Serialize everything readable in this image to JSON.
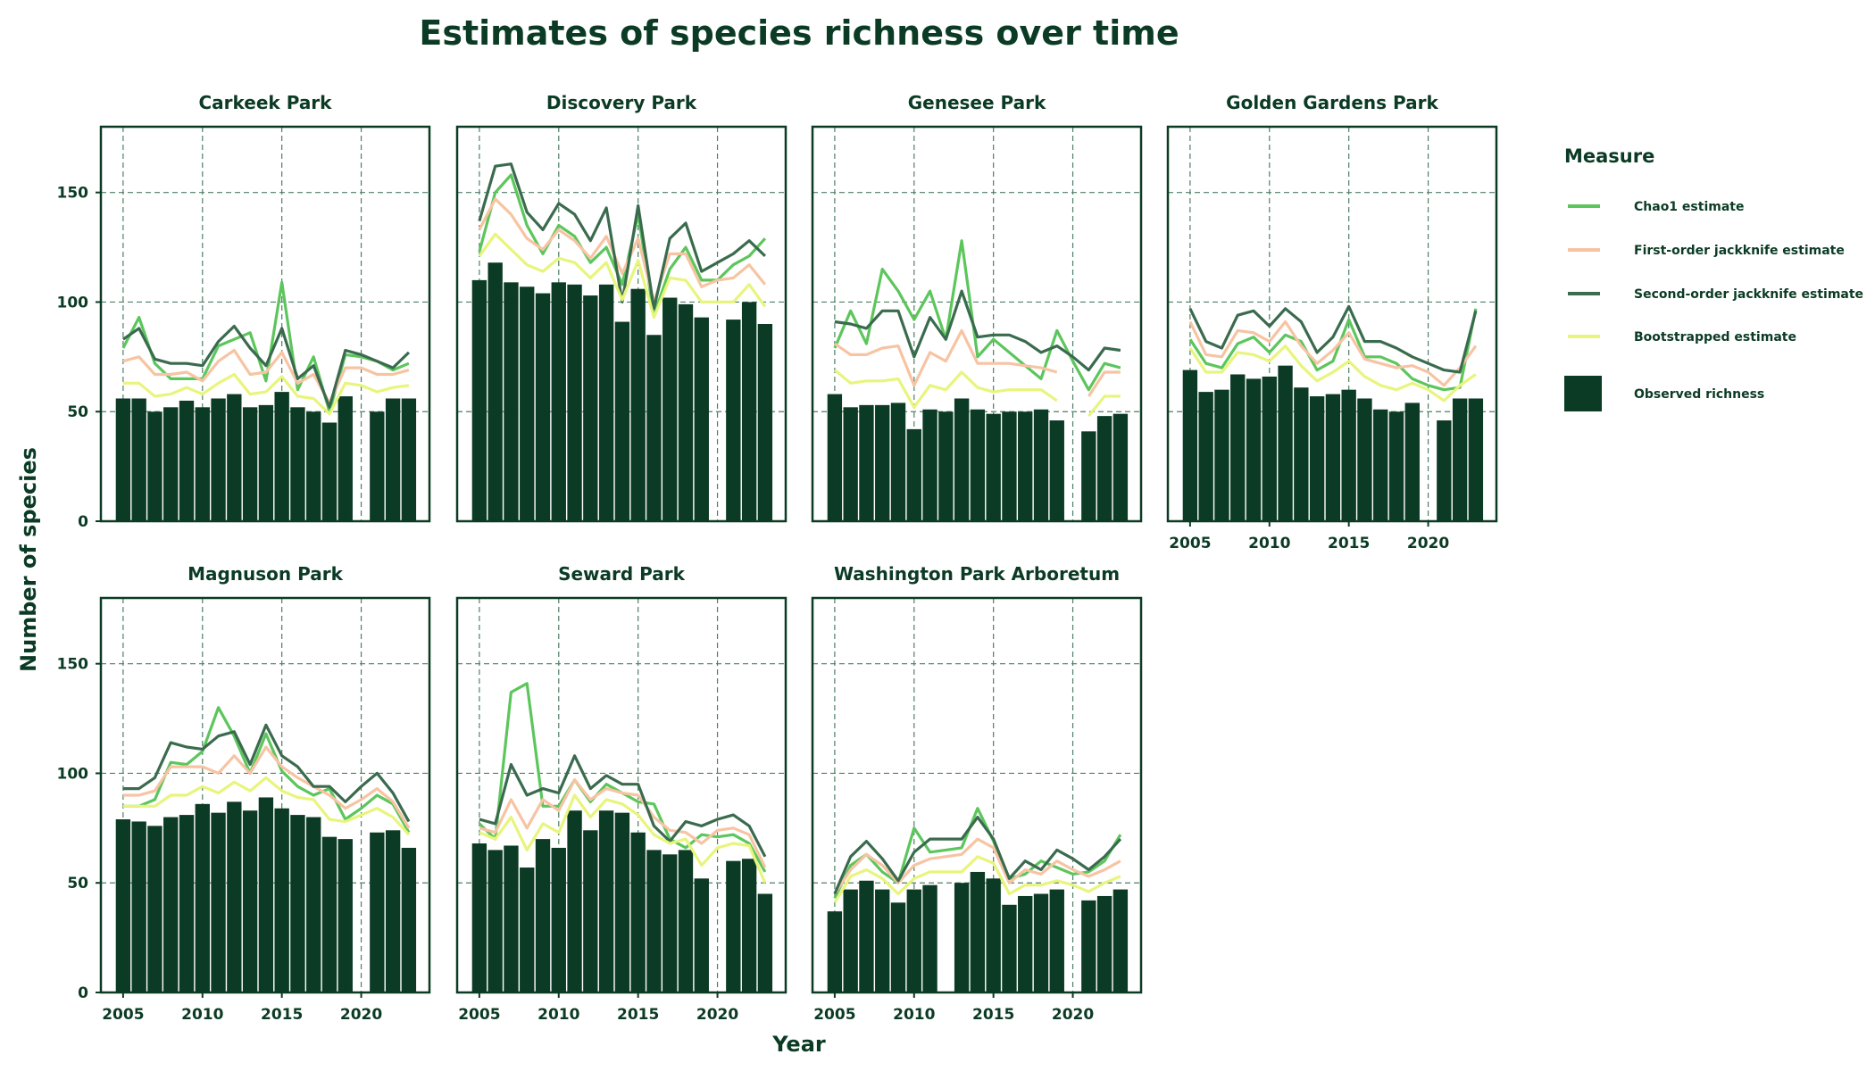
{
  "chart_data": {
    "type": "bar",
    "title": "Estimates of species richness over time",
    "xlabel": "Year",
    "ylabel": "Number of species",
    "ylim": [
      0,
      180
    ],
    "yticks": [
      0,
      50,
      100,
      150
    ],
    "xticks": [
      2005,
      2010,
      2015,
      2020
    ],
    "grid": true,
    "legend": {
      "title": "Measure",
      "position": "right",
      "entries": [
        {
          "name": "Chao1 estimate",
          "color": "#5cc65c",
          "kind": "line"
        },
        {
          "name": "First-order jackknife estimate",
          "color": "#f7c4a3",
          "kind": "line"
        },
        {
          "name": "Second-order jackknife estimate",
          "color": "#3a6b4e",
          "kind": "line"
        },
        {
          "name": "Bootstrapped estimate",
          "color": "#e8f57c",
          "kind": "line"
        },
        {
          "name": "Observed richness",
          "color": "#0b3b24",
          "kind": "bar"
        }
      ]
    },
    "years": [
      2005,
      2006,
      2007,
      2008,
      2009,
      2010,
      2011,
      2012,
      2013,
      2014,
      2015,
      2016,
      2017,
      2018,
      2019,
      2020,
      2021,
      2022,
      2023
    ],
    "panels": [
      {
        "name": "Carkeek Park",
        "observed": [
          56,
          56,
          50,
          52,
          55,
          52,
          56,
          58,
          52,
          53,
          59,
          52,
          50,
          45,
          57,
          null,
          50,
          56,
          56
        ],
        "chao1": [
          79,
          93,
          72,
          65,
          65,
          65,
          80,
          83,
          86,
          64,
          109,
          60,
          75,
          50,
          76,
          75,
          73,
          69,
          72
        ],
        "jack1": [
          73,
          75,
          67,
          67,
          68,
          64,
          73,
          78,
          67,
          68,
          77,
          63,
          67,
          54,
          70,
          70,
          67,
          67,
          69
        ],
        "jack2": [
          83,
          88,
          74,
          72,
          72,
          71,
          82,
          89,
          79,
          71,
          88,
          65,
          71,
          52,
          78,
          76,
          73,
          70,
          77
        ],
        "boot": [
          63,
          63,
          57,
          58,
          61,
          58,
          63,
          67,
          58,
          59,
          66,
          57,
          56,
          49,
          63,
          62,
          59,
          61,
          62
        ]
      },
      {
        "name": "Discovery Park",
        "observed": [
          110,
          118,
          109,
          107,
          104,
          109,
          108,
          103,
          108,
          91,
          106,
          85,
          102,
          99,
          93,
          null,
          92,
          100,
          90
        ],
        "chao1": [
          123,
          150,
          158,
          135,
          122,
          135,
          130,
          118,
          125,
          108,
          140,
          94,
          115,
          125,
          110,
          110,
          117,
          121,
          129
        ],
        "jack1": [
          133,
          147,
          140,
          129,
          124,
          133,
          128,
          120,
          130,
          113,
          129,
          100,
          122,
          122,
          107,
          110,
          111,
          117,
          108
        ],
        "jack2": [
          137,
          162,
          163,
          141,
          133,
          145,
          140,
          128,
          143,
          100,
          144,
          97,
          129,
          136,
          114,
          118,
          122,
          128,
          121
        ],
        "boot": [
          121,
          131,
          124,
          117,
          114,
          120,
          118,
          111,
          118,
          101,
          119,
          93,
          111,
          110,
          100,
          100,
          100,
          108,
          98
        ]
      },
      {
        "name": "Genesee Park",
        "observed": [
          58,
          52,
          53,
          53,
          54,
          42,
          51,
          50,
          56,
          51,
          49,
          50,
          50,
          51,
          46,
          null,
          41,
          48,
          49
        ],
        "chao1": [
          79,
          96,
          81,
          115,
          105,
          92,
          105,
          83,
          128,
          75,
          83,
          77,
          71,
          65,
          87,
          73,
          60,
          72,
          70
        ],
        "jack1": [
          81,
          76,
          76,
          79,
          80,
          62,
          77,
          73,
          87,
          72,
          72,
          72,
          71,
          70,
          68,
          null,
          57,
          68,
          68
        ],
        "jack2": [
          91,
          90,
          88,
          96,
          96,
          75,
          93,
          83,
          105,
          84,
          85,
          85,
          82,
          77,
          80,
          75,
          69,
          79,
          78
        ],
        "boot": [
          69,
          63,
          64,
          64,
          65,
          52,
          62,
          60,
          68,
          61,
          59,
          60,
          60,
          60,
          55,
          null,
          48,
          57,
          57
        ]
      },
      {
        "name": "Golden Gardens Park",
        "observed": [
          69,
          59,
          60,
          67,
          65,
          66,
          71,
          61,
          57,
          58,
          60,
          56,
          51,
          50,
          54,
          null,
          46,
          56,
          56
        ],
        "chao1": [
          83,
          72,
          70,
          81,
          84,
          77,
          85,
          82,
          69,
          73,
          92,
          75,
          75,
          72,
          65,
          62,
          60,
          61,
          97
        ],
        "jack1": [
          91,
          76,
          75,
          87,
          86,
          82,
          91,
          80,
          72,
          78,
          86,
          74,
          72,
          70,
          71,
          68,
          62,
          70,
          80
        ],
        "jack2": [
          97,
          82,
          79,
          94,
          96,
          89,
          97,
          91,
          77,
          84,
          98,
          82,
          82,
          79,
          75,
          72,
          69,
          68,
          96
        ],
        "boot": [
          79,
          68,
          68,
          77,
          76,
          73,
          80,
          71,
          64,
          68,
          73,
          66,
          62,
          60,
          63,
          60,
          55,
          62,
          67
        ]
      },
      {
        "name": "Magnuson Park",
        "observed": [
          79,
          78,
          76,
          80,
          81,
          86,
          82,
          87,
          83,
          89,
          84,
          81,
          80,
          71,
          70,
          null,
          73,
          74,
          66
        ],
        "chao1": [
          85,
          85,
          88,
          105,
          104,
          110,
          130,
          117,
          100,
          118,
          101,
          94,
          90,
          93,
          79,
          84,
          90,
          86,
          73
        ],
        "jack1": [
          90,
          90,
          92,
          103,
          103,
          103,
          100,
          108,
          100,
          112,
          103,
          98,
          94,
          90,
          84,
          88,
          93,
          87,
          75
        ],
        "jack2": [
          93,
          93,
          98,
          114,
          112,
          111,
          117,
          119,
          104,
          122,
          108,
          103,
          94,
          94,
          87,
          94,
          100,
          91,
          78
        ],
        "boot": [
          85,
          85,
          85,
          90,
          90,
          94,
          91,
          96,
          92,
          98,
          92,
          89,
          88,
          79,
          78,
          81,
          84,
          80,
          72
        ]
      },
      {
        "name": "Seward Park",
        "observed": [
          68,
          65,
          67,
          57,
          70,
          66,
          83,
          74,
          83,
          82,
          73,
          65,
          63,
          65,
          52,
          null,
          60,
          61,
          45
        ],
        "chao1": [
          77,
          70,
          137,
          141,
          85,
          85,
          97,
          87,
          95,
          91,
          87,
          86,
          70,
          66,
          72,
          71,
          72,
          68,
          55
        ],
        "jack1": [
          75,
          73,
          88,
          75,
          88,
          83,
          97,
          88,
          93,
          91,
          90,
          80,
          74,
          73,
          68,
          74,
          75,
          72,
          57
        ],
        "jack2": [
          79,
          77,
          104,
          90,
          93,
          91,
          108,
          93,
          99,
          95,
          95,
          76,
          69,
          78,
          76,
          79,
          81,
          76,
          62
        ],
        "boot": [
          73,
          70,
          80,
          65,
          77,
          73,
          90,
          80,
          88,
          86,
          81,
          72,
          68,
          70,
          58,
          66,
          68,
          67,
          50
        ]
      },
      {
        "name": "Washington Park Arboretum",
        "observed": [
          37,
          47,
          51,
          47,
          41,
          47,
          49,
          null,
          50,
          55,
          52,
          40,
          44,
          45,
          47,
          null,
          42,
          44,
          47
        ],
        "chao1": [
          43,
          58,
          63,
          55,
          50,
          75,
          64,
          65,
          66,
          84,
          69,
          52,
          54,
          60,
          57,
          54,
          55,
          60,
          72
        ],
        "jack1": [
          45,
          56,
          63,
          58,
          50,
          58,
          61,
          62,
          63,
          70,
          66,
          50,
          56,
          54,
          60,
          56,
          53,
          56,
          60
        ],
        "jack2": [
          45,
          62,
          69,
          61,
          51,
          64,
          70,
          70,
          70,
          80,
          70,
          52,
          60,
          56,
          65,
          61,
          56,
          62,
          70
        ],
        "boot": [
          41,
          53,
          56,
          52,
          45,
          52,
          55,
          55,
          55,
          62,
          59,
          45,
          49,
          49,
          51,
          49,
          46,
          50,
          53
        ]
      }
    ]
  }
}
